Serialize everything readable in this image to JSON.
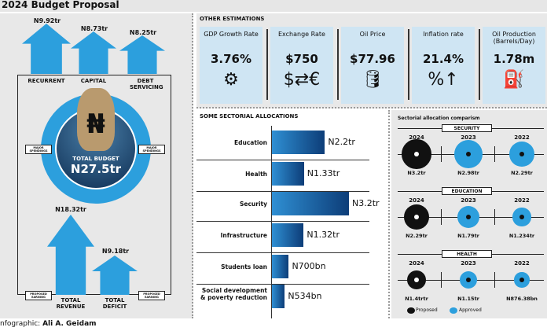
{
  "title": "2024 Budget Proposal",
  "spending": {
    "items": [
      {
        "label": "RECURRENT",
        "amount": "N9.92tr"
      },
      {
        "label": "CAPITAL",
        "amount": "N8.73tr"
      },
      {
        "label": "DEBT SERVICING",
        "amount": "N8.25tr"
      }
    ],
    "tag": "MAJOR SPENDINGS"
  },
  "total": {
    "label": "TOTAL BUDGET",
    "amount": "N27.5tr",
    "symbol": "₦"
  },
  "earning": {
    "items": [
      {
        "label": "TOTAL REVENUE",
        "amount": "N18.32tr"
      },
      {
        "label": "TOTAL DEFICIT",
        "amount": "N9.18tr"
      }
    ],
    "tag": "PROPOSED EARNING"
  },
  "estimations": {
    "heading": "OTHER ESTIMATIONS",
    "items": [
      {
        "name": "GDP Growth Rate",
        "value": "3.76%",
        "icon": "gdp-globe-icon",
        "glyph": "⚙"
      },
      {
        "name": "Exchange Rate",
        "value": "$750",
        "icon": "currency-exchange-icon",
        "glyph": "$⇄€"
      },
      {
        "name": "Oil Price",
        "value": "$77.96",
        "icon": "oil-barrel-chart-icon",
        "glyph": "🛢"
      },
      {
        "name": "Inflation rate",
        "value": "21.4%",
        "icon": "inflation-up-icon",
        "glyph": "%↑"
      },
      {
        "name": "Oil Production (Barrels/Day)",
        "value": "1.78m",
        "icon": "oil-rig-icon",
        "glyph": "⛽"
      }
    ]
  },
  "chart_data": [
    {
      "type": "bar",
      "title": "SOME SECTORIAL ALLOCATIONS",
      "orientation": "horizontal",
      "unit": "N trillion",
      "categories": [
        "Education",
        "Health",
        "Security",
        "Infrastructure",
        "Students loan",
        "Social development & poverty reduction"
      ],
      "values": [
        2.2,
        1.33,
        3.2,
        1.32,
        0.7,
        0.534
      ],
      "labels": [
        "N2.2tr",
        "N1.33tr",
        "N3.2tr",
        "N1.32tr",
        "N700bn",
        "N534bn"
      ],
      "color": "#1f6fb5"
    },
    {
      "type": "scatter",
      "title": "Sectorial allocation comparism",
      "years": [
        "2024",
        "2023",
        "2022"
      ],
      "groups": [
        {
          "name": "SECURITY",
          "values": [
            3.2,
            2.98,
            2.29
          ],
          "labels": [
            "N3.2tr",
            "N2.98tr",
            "N2.29tr"
          ]
        },
        {
          "name": "EDUCATION",
          "values": [
            2.29,
            1.79,
            1.234
          ],
          "labels": [
            "N2.29tr",
            "N1.79tr",
            "N1.234tr"
          ]
        },
        {
          "name": "HEALTH",
          "values": [
            1.4,
            1.15,
            0.876
          ],
          "labels": [
            "N1.4trtr",
            "N1.15tr",
            "N876.38bn"
          ]
        }
      ],
      "legend": [
        {
          "name": "Proposed",
          "color": "#111111"
        },
        {
          "name": "Approved",
          "color": "#2c9fdd"
        }
      ],
      "legend_position": "bottom"
    }
  ],
  "credit": {
    "prefix": "nfographic:",
    "author": "Ali A. Geidam"
  }
}
